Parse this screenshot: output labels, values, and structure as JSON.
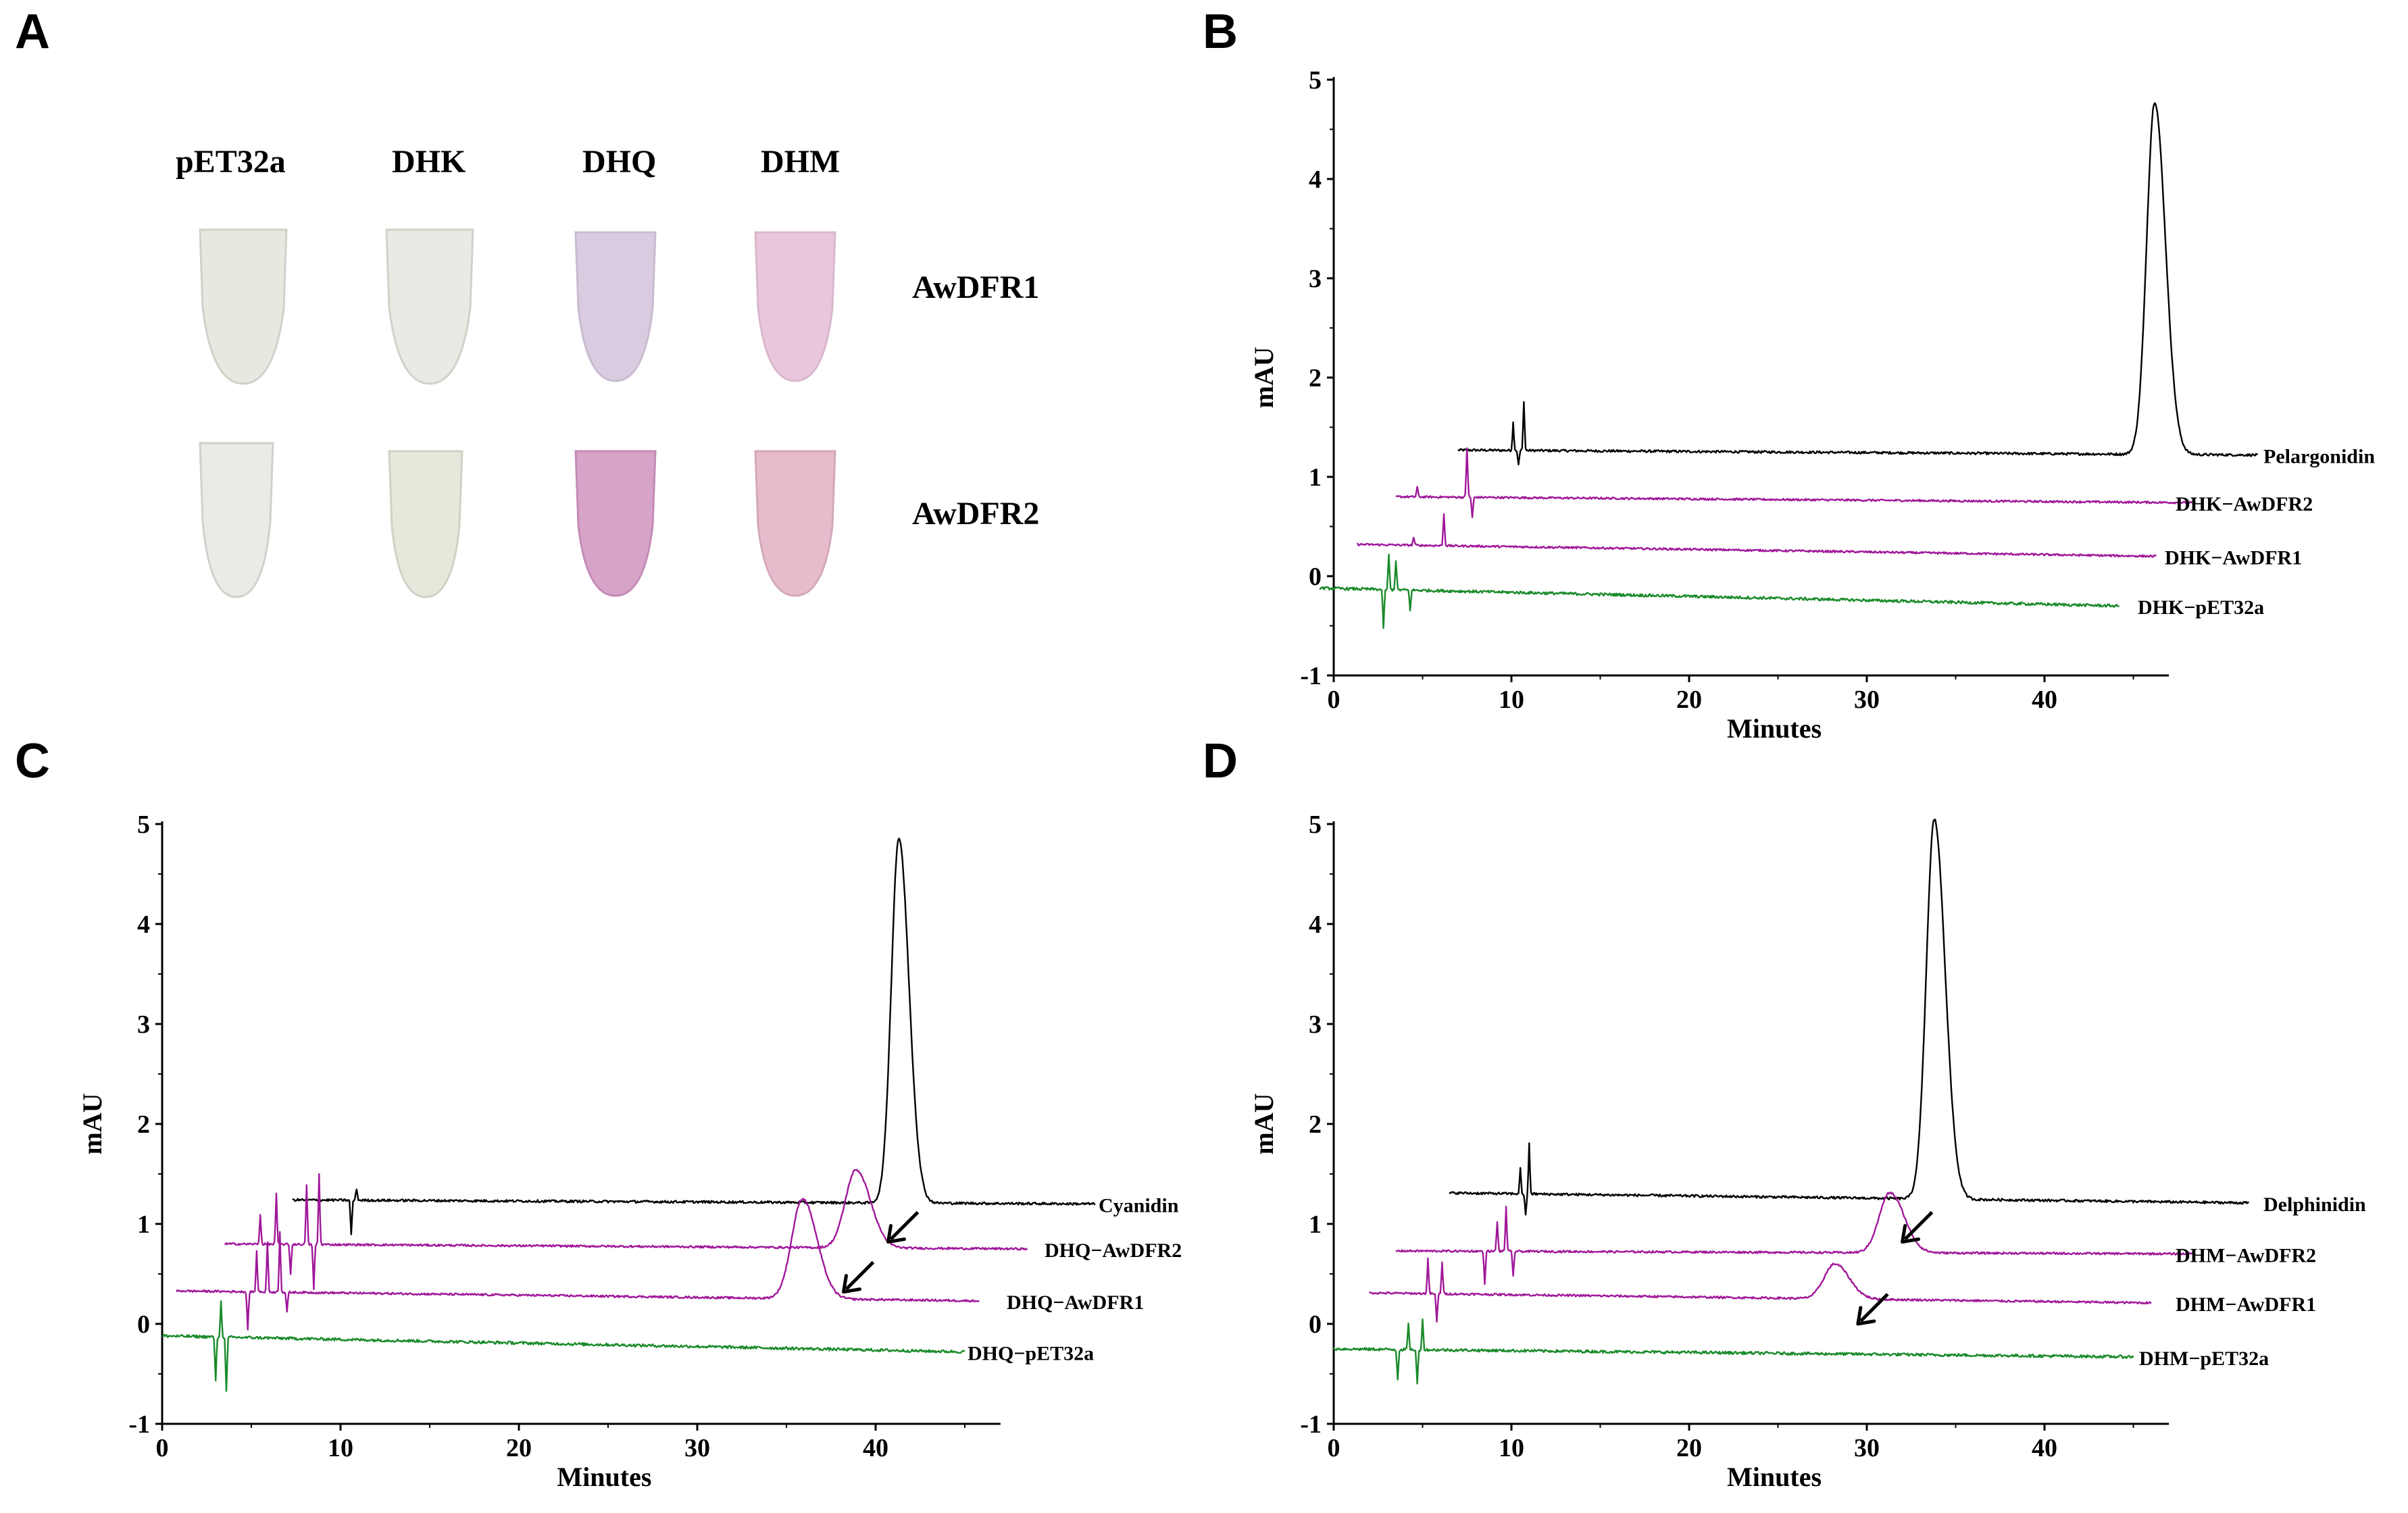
{
  "panelA": {
    "letter": "A",
    "columns": [
      "pET32a",
      "DHK",
      "DHQ",
      "DHM"
    ],
    "rows": [
      {
        "label": "AwDFR1",
        "tubes": [
          {
            "name": "pET32a",
            "color": "#e6e9e0"
          },
          {
            "name": "DHK",
            "color": "#e8eae4"
          },
          {
            "name": "DHQ",
            "color": "#d9cbe0"
          },
          {
            "name": "DHM",
            "color": "#e9c6dc"
          }
        ]
      },
      {
        "label": "AwDFR2",
        "tubes": [
          {
            "name": "pET32a",
            "color": "#e8ebe6"
          },
          {
            "name": "DHK",
            "color": "#e6e8dc"
          },
          {
            "name": "DHQ",
            "color": "#d7a3c8"
          },
          {
            "name": "DHM",
            "color": "#e6bccd"
          }
        ]
      }
    ]
  },
  "chart_data": [
    {
      "panel": "B",
      "type": "line",
      "xlabel": "Minutes",
      "ylabel": "mAU",
      "xlim": [
        0,
        47
      ],
      "ylim": [
        -1,
        5
      ],
      "xticks": [
        "0",
        "10",
        "20",
        "30",
        "40"
      ],
      "xtick_values": [
        0,
        10,
        20,
        30,
        40
      ],
      "yticks": [
        "-1",
        "0",
        "1",
        "2",
        "3",
        "4",
        "5"
      ],
      "ytick_values": [
        -1,
        0,
        1,
        2,
        3,
        4,
        5
      ],
      "series": [
        {
          "name": "Pelargonidin",
          "color": "#000000",
          "x_start": 7,
          "x_end": 52,
          "baseline_start": 1.27,
          "baseline_end": 1.22,
          "noise": 0.012,
          "peaks": [
            {
              "x": 46.2,
              "height": 3.55,
              "width": 0.45
            }
          ],
          "spikes": [
            {
              "x": 10.1,
              "amp": 0.28
            },
            {
              "x": 10.4,
              "amp": -0.15
            },
            {
              "x": 10.7,
              "amp": 0.5
            }
          ]
        },
        {
          "name": "DHK−AwDFR2",
          "color": "#a0189a",
          "x_start": 3.5,
          "x_end": 48.5,
          "baseline_start": 0.8,
          "baseline_end": 0.74,
          "noise": 0.01,
          "peaks": [],
          "spikes": [
            {
              "x": 4.7,
              "amp": 0.1
            },
            {
              "x": 7.5,
              "amp": 0.5
            },
            {
              "x": 7.8,
              "amp": -0.2
            }
          ]
        },
        {
          "name": "DHK−AwDFR1",
          "color": "#a0189a",
          "x_start": 1.3,
          "x_end": 46.3,
          "baseline_start": 0.32,
          "baseline_end": 0.2,
          "noise": 0.01,
          "peaks": [],
          "spikes": [
            {
              "x": 4.5,
              "amp": 0.08
            },
            {
              "x": 6.2,
              "amp": 0.32
            }
          ]
        },
        {
          "name": "DHK−pET32a",
          "color": "#1a8a2a",
          "x_start": -0.8,
          "x_end": 44.2,
          "baseline_start": -0.12,
          "baseline_end": -0.3,
          "noise": 0.014,
          "peaks": [],
          "spikes": [
            {
              "x": 2.8,
              "amp": -0.38
            },
            {
              "x": 3.1,
              "amp": 0.35
            },
            {
              "x": 3.5,
              "amp": 0.3
            },
            {
              "x": 4.3,
              "amp": -0.2
            }
          ]
        }
      ]
    },
    {
      "panel": "C",
      "type": "line",
      "xlabel": "Minutes",
      "ylabel": "mAU",
      "xlim": [
        0,
        47
      ],
      "ylim": [
        -1,
        5
      ],
      "xticks": [
        "0",
        "10",
        "20",
        "30",
        "40"
      ],
      "xtick_values": [
        0,
        10,
        20,
        30,
        40
      ],
      "yticks": [
        "-1",
        "0",
        "1",
        "2",
        "3",
        "4",
        "5"
      ],
      "ytick_values": [
        -1,
        0,
        1,
        2,
        3,
        4,
        5
      ],
      "series": [
        {
          "name": "Cyanidin",
          "color": "#000000",
          "x_start": 7.3,
          "x_end": 52.3,
          "baseline_start": 1.24,
          "baseline_end": 1.2,
          "noise": 0.012,
          "peaks": [
            {
              "x": 41.3,
              "height": 3.65,
              "width": 0.42
            }
          ],
          "spikes": [
            {
              "x": 10.6,
              "amp": -0.35
            },
            {
              "x": 10.9,
              "amp": 0.12
            }
          ]
        },
        {
          "name": "DHQ−AwDFR2",
          "color": "#a0189a",
          "x_start": 3.5,
          "x_end": 48.5,
          "baseline_start": 0.8,
          "baseline_end": 0.75,
          "noise": 0.01,
          "peaks": [
            {
              "x": 38.9,
              "height": 0.78,
              "width": 0.6
            }
          ],
          "spikes": [
            {
              "x": 5.5,
              "amp": 0.3
            },
            {
              "x": 6.4,
              "amp": 0.5
            },
            {
              "x": 7.2,
              "amp": -0.3
            },
            {
              "x": 8.1,
              "amp": 0.6
            },
            {
              "x": 8.5,
              "amp": -0.45
            },
            {
              "x": 8.8,
              "amp": 0.7
            }
          ]
        },
        {
          "name": "DHQ−AwDFR1",
          "color": "#a0189a",
          "x_start": 0.8,
          "x_end": 45.8,
          "baseline_start": 0.33,
          "baseline_end": 0.23,
          "noise": 0.01,
          "peaks": [
            {
              "x": 35.9,
              "height": 1.0,
              "width": 0.6
            }
          ],
          "spikes": [
            {
              "x": 4.8,
              "amp": -0.38
            },
            {
              "x": 5.3,
              "amp": 0.4
            },
            {
              "x": 5.9,
              "amp": 0.5
            },
            {
              "x": 6.6,
              "amp": 0.6
            },
            {
              "x": 7.0,
              "amp": -0.2
            }
          ]
        },
        {
          "name": "DHQ−pET32a",
          "color": "#1a8a2a",
          "x_start": 0,
          "x_end": 45,
          "baseline_start": -0.12,
          "baseline_end": -0.28,
          "noise": 0.014,
          "peaks": [],
          "spikes": [
            {
              "x": 3.0,
              "amp": -0.45
            },
            {
              "x": 3.3,
              "amp": 0.35
            },
            {
              "x": 3.6,
              "amp": -0.55
            }
          ]
        }
      ],
      "arrows": [
        {
          "x": 38.2,
          "y": 0.32
        },
        {
          "x": 40.7,
          "y": 0.82
        }
      ]
    },
    {
      "panel": "D",
      "type": "line",
      "xlabel": "Minutes",
      "ylabel": "mAU",
      "xlim": [
        0,
        47
      ],
      "ylim": [
        -1,
        5
      ],
      "xticks": [
        "0",
        "10",
        "20",
        "30",
        "40"
      ],
      "xtick_values": [
        0,
        10,
        20,
        30,
        40
      ],
      "yticks": [
        "-1",
        "0",
        "1",
        "2",
        "3",
        "4",
        "5"
      ],
      "ytick_values": [
        -1,
        0,
        1,
        2,
        3,
        4,
        5
      ],
      "series": [
        {
          "name": "Delphinidin",
          "color": "#000000",
          "x_start": 6.5,
          "x_end": 51.5,
          "baseline_start": 1.31,
          "baseline_end": 1.21,
          "noise": 0.012,
          "peaks": [
            {
              "x": 33.8,
              "height": 3.8,
              "width": 0.45
            }
          ],
          "spikes": [
            {
              "x": 10.5,
              "amp": 0.25
            },
            {
              "x": 10.8,
              "amp": -0.22
            },
            {
              "x": 11.0,
              "amp": 0.5
            }
          ]
        },
        {
          "name": "DHM−AwDFR2",
          "color": "#a0189a",
          "x_start": 3.5,
          "x_end": 48.5,
          "baseline_start": 0.73,
          "baseline_end": 0.7,
          "noise": 0.01,
          "peaks": [
            {
              "x": 31.3,
              "height": 0.6,
              "width": 0.6
            }
          ],
          "spikes": [
            {
              "x": 8.5,
              "amp": -0.32
            },
            {
              "x": 9.2,
              "amp": 0.3
            },
            {
              "x": 9.7,
              "amp": 0.45
            },
            {
              "x": 10.1,
              "amp": -0.25
            }
          ]
        },
        {
          "name": "DHM−AwDFR1",
          "color": "#a0189a",
          "x_start": 2.0,
          "x_end": 46.0,
          "baseline_start": 0.31,
          "baseline_end": 0.21,
          "noise": 0.01,
          "peaks": [
            {
              "x": 28.2,
              "height": 0.35,
              "width": 0.6
            }
          ],
          "spikes": [
            {
              "x": 5.3,
              "amp": 0.35
            },
            {
              "x": 5.8,
              "amp": -0.28
            },
            {
              "x": 6.1,
              "amp": 0.32
            }
          ]
        },
        {
          "name": "DHM−pET32a",
          "color": "#1a8a2a",
          "x_start": 0,
          "x_end": 45,
          "baseline_start": -0.25,
          "baseline_end": -0.33,
          "noise": 0.014,
          "peaks": [],
          "spikes": [
            {
              "x": 3.6,
              "amp": -0.3
            },
            {
              "x": 4.2,
              "amp": 0.25
            },
            {
              "x": 4.7,
              "amp": -0.35
            },
            {
              "x": 5.0,
              "amp": 0.3
            }
          ]
        }
      ],
      "arrows": [
        {
          "x": 29.5,
          "y": 0.0
        },
        {
          "x": 32.0,
          "y": 0.82
        }
      ]
    }
  ]
}
